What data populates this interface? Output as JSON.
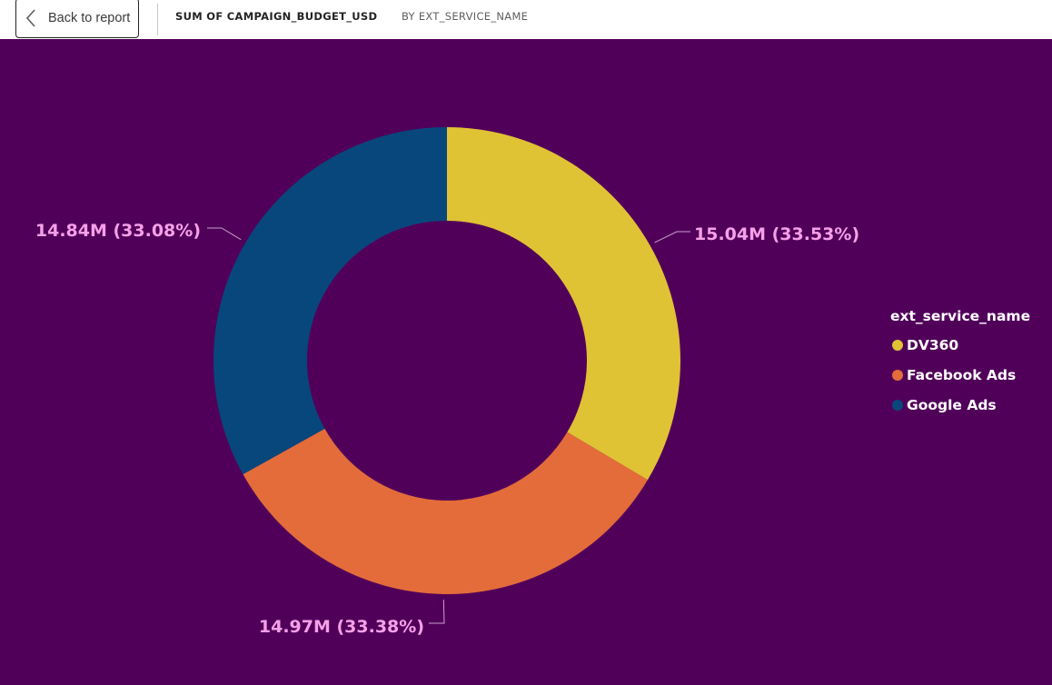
{
  "header": {
    "back_label": "Back to report",
    "title": "SUM OF CAMPAIGN_BUDGET_USD",
    "subtitle": "BY EXT_SERVICE_NAME",
    "back_icon": "chevron-left-icon"
  },
  "colors": {
    "background": "#51005a",
    "label": "#f6a0e8",
    "leader": "#c9a0c9"
  },
  "chart_data": {
    "type": "pie",
    "variant": "donut",
    "legend_title": "ext_service_name",
    "legend_position": "right",
    "categories": [
      "DV360",
      "Facebook Ads",
      "Google Ads"
    ],
    "values": [
      15.04,
      14.97,
      14.84
    ],
    "unit": "M",
    "percentages": [
      33.53,
      33.38,
      33.08
    ],
    "labels": [
      "15.04M (33.53%)",
      "14.97M (33.38%)",
      "14.84M (33.08%)"
    ],
    "colors": [
      "#e0c235",
      "#e46c3a",
      "#08477c"
    ]
  }
}
